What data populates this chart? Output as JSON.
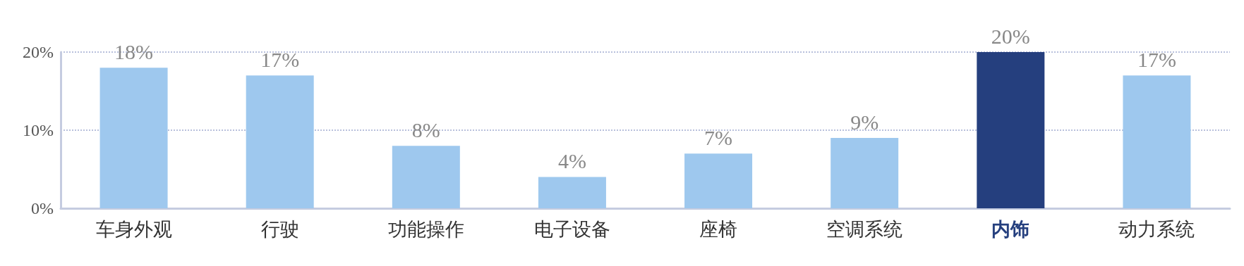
{
  "chart_data": {
    "type": "bar",
    "categories": [
      "车身外观",
      "行驶",
      "功能操作",
      "电子设备",
      "座椅",
      "空调系统",
      "内饰",
      "动力系统"
    ],
    "values": [
      18,
      17,
      8,
      4,
      7,
      9,
      20,
      17
    ],
    "colors": [
      "#9ec8ee",
      "#9ec8ee",
      "#9ec8ee",
      "#9ec8ee",
      "#9ec8ee",
      "#9ec8ee",
      "#253f7e",
      "#9ec8ee"
    ],
    "value_labels": [
      "18%",
      "17%",
      "8%",
      "4%",
      "7%",
      "9%",
      "20%",
      "17%"
    ],
    "ylim": [
      0,
      20
    ],
    "yticks": [
      {
        "value": 0,
        "label": "0%"
      },
      {
        "value": 10,
        "label": "10%"
      },
      {
        "value": 20,
        "label": "20%"
      }
    ],
    "grid": "y"
  }
}
